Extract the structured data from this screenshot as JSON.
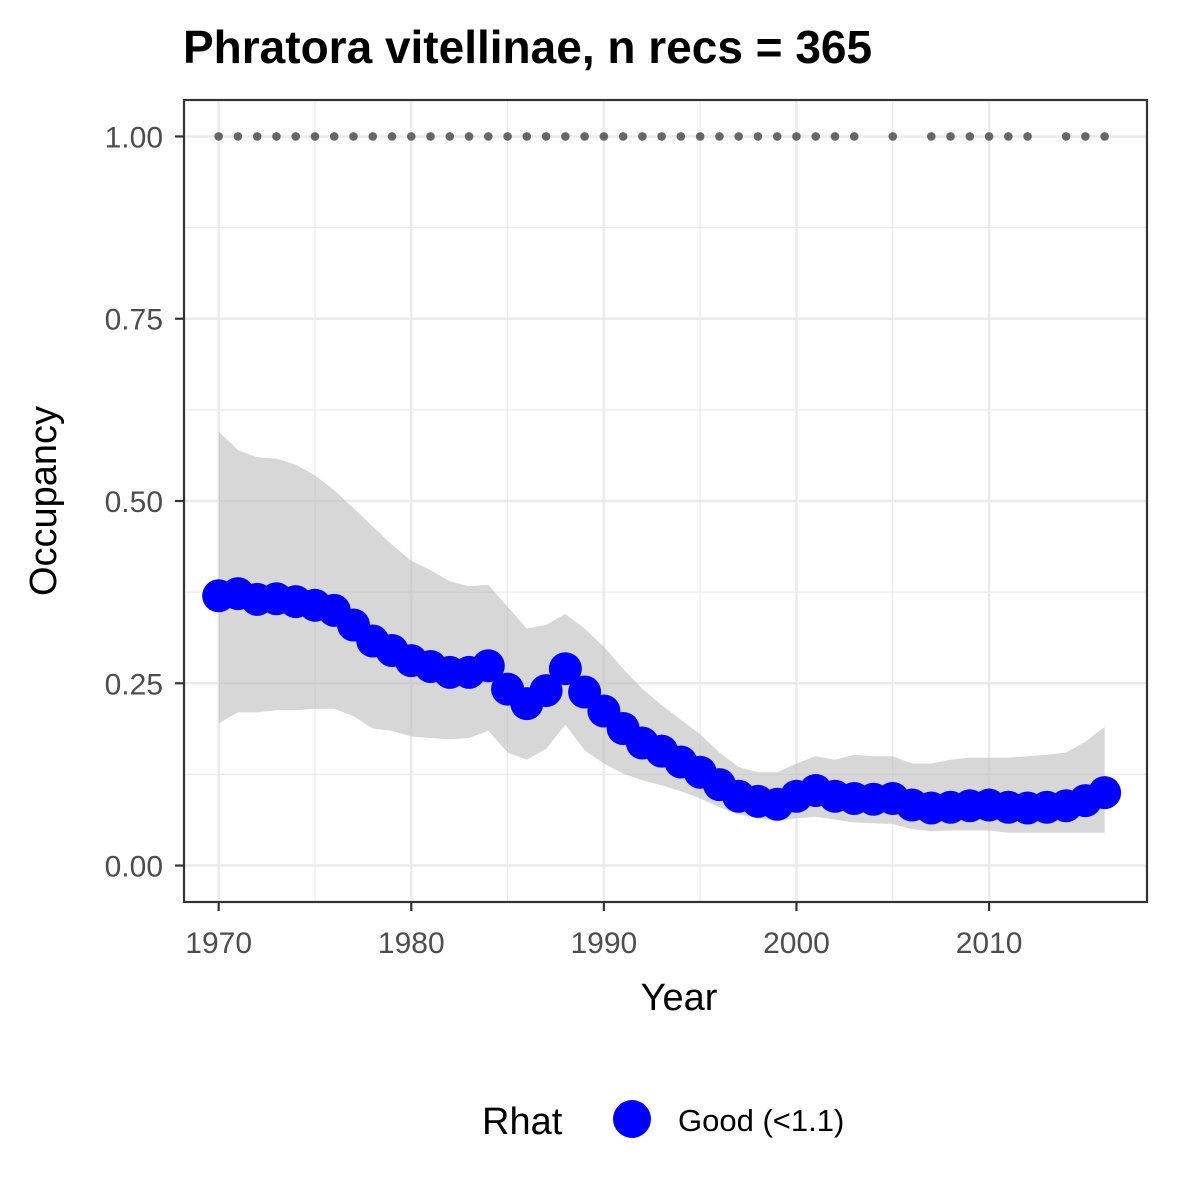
{
  "chart_data": {
    "type": "line",
    "title": "Phratora vitellinae, n recs = 365",
    "xlabel": "Year",
    "ylabel": "Occupancy",
    "xlim": [
      1968.2,
      2018.2
    ],
    "ylim": [
      -0.05,
      1.05
    ],
    "x_ticks": [
      1970,
      1980,
      1990,
      2000,
      2010
    ],
    "x_tick_labels": [
      "1970",
      "1980",
      "1990",
      "2000",
      "2010"
    ],
    "y_ticks": [
      0,
      0.25,
      0.5,
      0.75,
      1
    ],
    "y_tick_labels": [
      "0.00",
      "0.25",
      "0.50",
      "0.75",
      "1.00"
    ],
    "grid": true,
    "legend": {
      "position": "bottom",
      "title": "Rhat",
      "items": [
        {
          "label": "Good (<1.1)",
          "color": "#0000ff"
        }
      ]
    },
    "colors": {
      "mean": "#0000ff",
      "ribbon": "#bebebe",
      "record_points": "#666666",
      "grid": "#ebebeb",
      "panel_border": "#333333",
      "tick_text": "#4d4d4d"
    },
    "x": [
      1970,
      1971,
      1972,
      1973,
      1974,
      1975,
      1976,
      1977,
      1978,
      1979,
      1980,
      1981,
      1982,
      1983,
      1984,
      1985,
      1986,
      1987,
      1988,
      1989,
      1990,
      1991,
      1992,
      1993,
      1994,
      1995,
      1996,
      1997,
      1998,
      1999,
      2000,
      2001,
      2002,
      2003,
      2004,
      2005,
      2006,
      2007,
      2008,
      2009,
      2010,
      2011,
      2012,
      2013,
      2014,
      2015,
      2016
    ],
    "series": [
      {
        "values": [
          0.37,
          0.373,
          0.365,
          0.366,
          0.362,
          0.357,
          0.35,
          0.33,
          0.308,
          0.295,
          0.281,
          0.273,
          0.265,
          0.265,
          0.274,
          0.242,
          0.222,
          0.24,
          0.27,
          0.238,
          0.212,
          0.188,
          0.168,
          0.157,
          0.142,
          0.128,
          0.111,
          0.095,
          0.088,
          0.084,
          0.095,
          0.103,
          0.095,
          0.092,
          0.091,
          0.092,
          0.083,
          0.079,
          0.08,
          0.082,
          0.083,
          0.08,
          0.079,
          0.08,
          0.082,
          0.089,
          0.1
        ],
        "lower": [
          0.195,
          0.21,
          0.21,
          0.213,
          0.213,
          0.215,
          0.215,
          0.205,
          0.188,
          0.185,
          0.177,
          0.175,
          0.173,
          0.175,
          0.185,
          0.155,
          0.145,
          0.16,
          0.193,
          0.158,
          0.14,
          0.126,
          0.117,
          0.11,
          0.102,
          0.092,
          0.08,
          0.07,
          0.065,
          0.061,
          0.065,
          0.067,
          0.063,
          0.059,
          0.058,
          0.057,
          0.05,
          0.047,
          0.048,
          0.048,
          0.048,
          0.045,
          0.045,
          0.045,
          0.045,
          0.045,
          0.045
        ],
        "upper": [
          0.595,
          0.57,
          0.56,
          0.558,
          0.55,
          0.535,
          0.515,
          0.49,
          0.465,
          0.44,
          0.418,
          0.405,
          0.39,
          0.383,
          0.385,
          0.355,
          0.325,
          0.33,
          0.345,
          0.325,
          0.3,
          0.27,
          0.242,
          0.22,
          0.2,
          0.18,
          0.155,
          0.135,
          0.128,
          0.128,
          0.14,
          0.15,
          0.145,
          0.152,
          0.15,
          0.15,
          0.14,
          0.14,
          0.145,
          0.148,
          0.148,
          0.148,
          0.15,
          0.152,
          0.155,
          0.17,
          0.19
        ]
      }
    ],
    "record_years": [
      1970,
      1971,
      1972,
      1973,
      1974,
      1975,
      1976,
      1977,
      1978,
      1979,
      1980,
      1981,
      1982,
      1983,
      1984,
      1985,
      1986,
      1987,
      1988,
      1989,
      1990,
      1991,
      1992,
      1993,
      1994,
      1995,
      1996,
      1997,
      1998,
      1999,
      2000,
      2001,
      2002,
      2003,
      2005,
      2007,
      2008,
      2009,
      2010,
      2011,
      2012,
      2014,
      2015,
      2016
    ],
    "record_value": 1.0
  }
}
